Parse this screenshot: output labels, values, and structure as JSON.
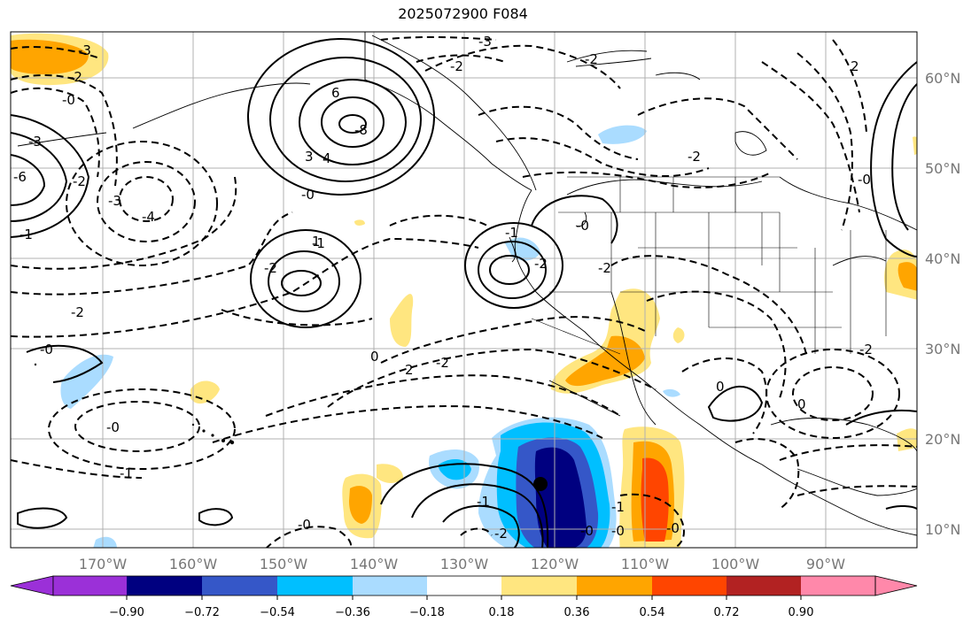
{
  "title": "2025072900 F084",
  "map": {
    "lat_labels": [
      "60°N",
      "50°N",
      "40°N",
      "30°N",
      "20°N",
      "10°N"
    ],
    "lon_labels": [
      "170°W",
      "160°W",
      "150°W",
      "140°W",
      "130°W",
      "120°W",
      "110°W",
      "100°W",
      "90°W"
    ],
    "contour_labels": [
      "-3",
      "-2",
      "-0",
      "-3",
      "-6",
      "-2",
      "-1",
      "-3",
      "-4",
      "6",
      "-8",
      "3",
      "4",
      "-0",
      "-1",
      "-2",
      "-2",
      "-0",
      "-3",
      "-2",
      "-2",
      "2",
      "-0",
      "-2",
      "-2",
      "-1",
      "-2",
      "-0",
      "-2",
      "0",
      "0",
      "-1",
      "2",
      "-1",
      "-2",
      "-1",
      "-0",
      "-2",
      "-0",
      "-0",
      "0",
      "-0",
      "1",
      "-0"
    ],
    "marker": "storm-center-marker",
    "colors": {
      "positive_contour": "#000000",
      "negative_contour": "#000000",
      "grid": "#b0b0b0",
      "land_outline": "#000000"
    }
  },
  "colorbar": {
    "ticks": [
      "−0.90",
      "−0.72",
      "−0.54",
      "−0.36",
      "−0.18",
      "0.18",
      "0.36",
      "0.54",
      "0.72",
      "0.90"
    ],
    "colors": [
      "#9b30d8",
      "#000080",
      "#3557c8",
      "#00bfff",
      "#aadcff",
      "#ffffff",
      "#ffe680",
      "#ffa500",
      "#ff4500",
      "#b22222",
      "#ff88aa"
    ]
  }
}
